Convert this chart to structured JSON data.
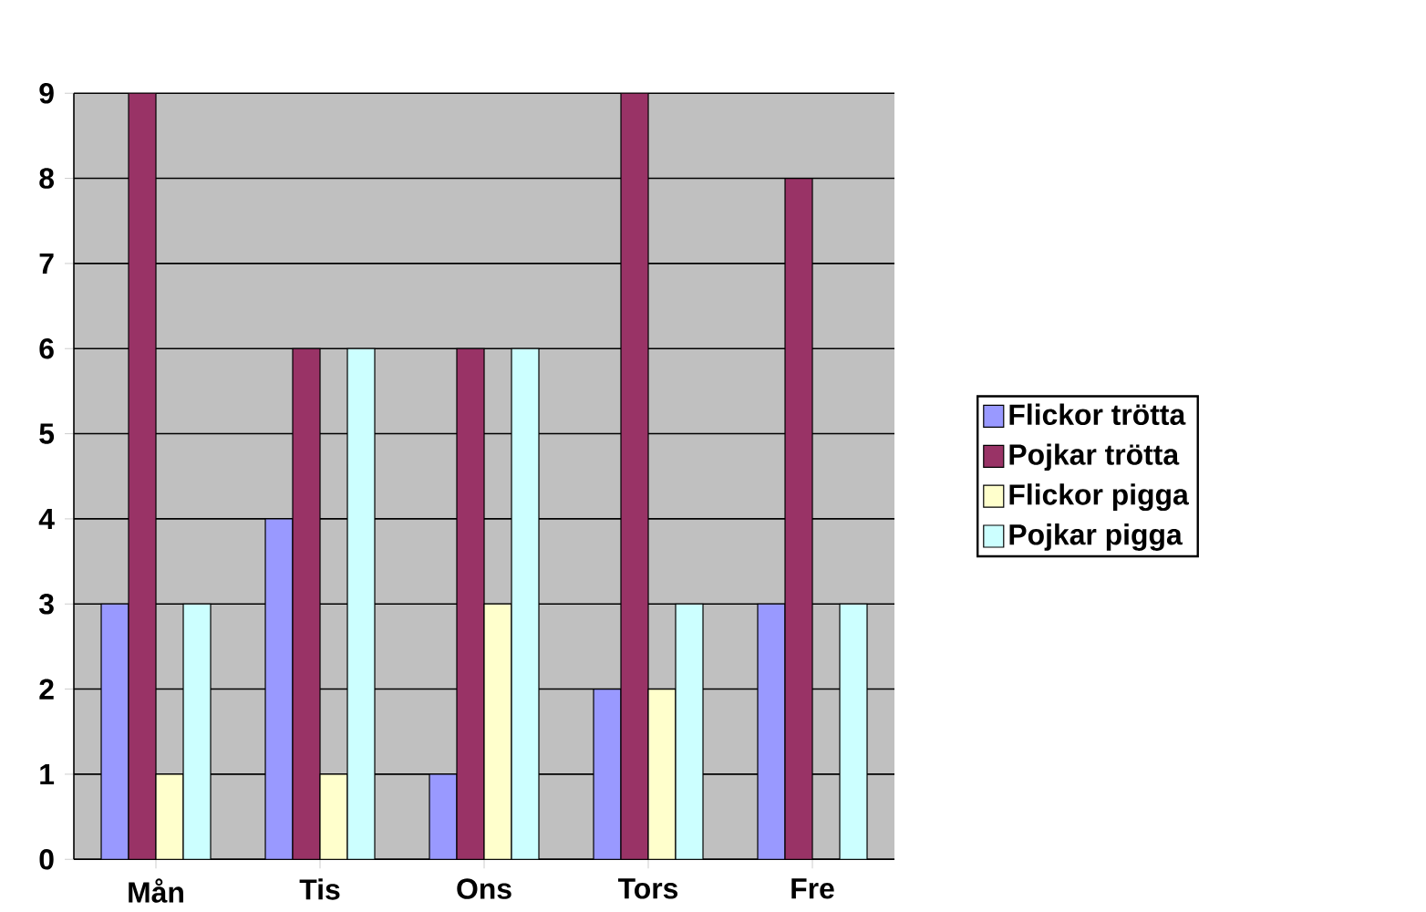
{
  "chart_data": {
    "type": "bar",
    "categories": [
      "Mån",
      "Tis",
      "Ons",
      "Tors",
      "Fre"
    ],
    "series": [
      {
        "name": "Flickor trötta",
        "color": "#9999ff",
        "values": [
          3,
          4,
          1,
          2,
          3
        ]
      },
      {
        "name": "Pojkar trötta",
        "color": "#993366",
        "values": [
          9,
          6,
          6,
          9,
          8
        ]
      },
      {
        "name": "Flickor pigga",
        "color": "#ffffcc",
        "values": [
          1,
          1,
          3,
          2,
          0
        ]
      },
      {
        "name": "Pojkar pigga",
        "color": "#ccffff",
        "values": [
          3,
          6,
          6,
          3,
          3
        ]
      }
    ],
    "ylim": [
      0,
      9
    ],
    "yticks": [
      0,
      1,
      2,
      3,
      4,
      5,
      6,
      7,
      8,
      9
    ],
    "grid": "y",
    "legend": "right"
  }
}
